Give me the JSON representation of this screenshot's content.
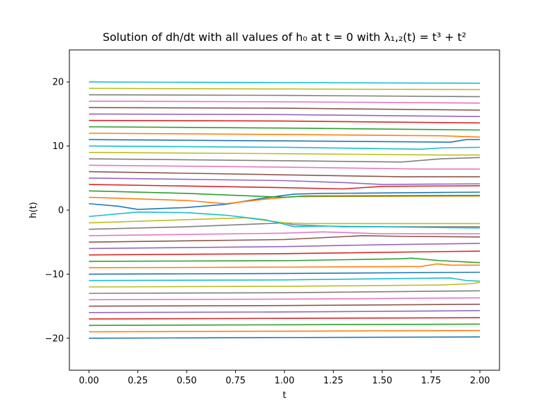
{
  "chart_data": {
    "type": "line",
    "title": "Solution of dh/dt with all values of h₀ at t = 0 with λ₁,₂(t) = t³ + t²",
    "xlabel": "t",
    "ylabel": "h(t)",
    "xlim": [
      -0.1,
      2.1
    ],
    "ylim": [
      -25,
      25
    ],
    "x_ticks": [
      0.0,
      0.25,
      0.5,
      0.75,
      1.0,
      1.25,
      1.5,
      1.75,
      2.0
    ],
    "x_tick_labels": [
      "0.00",
      "0.25",
      "0.50",
      "0.75",
      "1.00",
      "1.25",
      "1.50",
      "1.75",
      "2.00"
    ],
    "y_ticks": [
      -20,
      -10,
      0,
      10,
      20
    ],
    "y_tick_labels": [
      "−20",
      "−10",
      "0",
      "10",
      "20"
    ],
    "grid": false,
    "legend": "none",
    "series_colors": [
      "#1f77b4",
      "#ff7f0e",
      "#2ca02c",
      "#d62728",
      "#9467bd",
      "#8c564b",
      "#e377c2",
      "#7f7f7f",
      "#bcbd22",
      "#17becf"
    ],
    "series": [
      {
        "h0": -20,
        "points": [
          [
            0,
            -20.0
          ],
          [
            1,
            -19.9
          ],
          [
            2,
            -19.8
          ]
        ]
      },
      {
        "h0": -19,
        "points": [
          [
            0,
            -19.0
          ],
          [
            1,
            -18.9
          ],
          [
            2,
            -18.8
          ]
        ]
      },
      {
        "h0": -18,
        "points": [
          [
            0,
            -18.0
          ],
          [
            1,
            -17.9
          ],
          [
            2,
            -17.8
          ]
        ]
      },
      {
        "h0": -17,
        "points": [
          [
            0,
            -17.0
          ],
          [
            1,
            -16.9
          ],
          [
            2,
            -16.8
          ]
        ]
      },
      {
        "h0": -16,
        "points": [
          [
            0,
            -16.0
          ],
          [
            1,
            -15.9
          ],
          [
            2,
            -15.7
          ]
        ]
      },
      {
        "h0": -15,
        "points": [
          [
            0,
            -15.0
          ],
          [
            1,
            -14.9
          ],
          [
            2,
            -14.7
          ]
        ]
      },
      {
        "h0": -14,
        "points": [
          [
            0,
            -14.0
          ],
          [
            1,
            -13.9
          ],
          [
            2,
            -13.7
          ]
        ]
      },
      {
        "h0": -13,
        "points": [
          [
            0,
            -13.0
          ],
          [
            1,
            -12.9
          ],
          [
            2,
            -12.6
          ]
        ]
      },
      {
        "h0": -12,
        "points": [
          [
            0,
            -12.0
          ],
          [
            1,
            -11.9
          ],
          [
            1.8,
            -11.7
          ],
          [
            1.95,
            -11.5
          ],
          [
            2,
            -11.3
          ]
        ]
      },
      {
        "h0": -11,
        "points": [
          [
            0,
            -11.0
          ],
          [
            1,
            -10.9
          ],
          [
            1.85,
            -10.6
          ],
          [
            1.93,
            -11.0
          ],
          [
            2,
            -11.1
          ]
        ]
      },
      {
        "h0": -10,
        "points": [
          [
            0,
            -10.0
          ],
          [
            1,
            -9.9
          ],
          [
            2,
            -9.7
          ]
        ]
      },
      {
        "h0": -9,
        "points": [
          [
            0,
            -9.0
          ],
          [
            1,
            -8.9
          ],
          [
            1.7,
            -8.8
          ],
          [
            1.78,
            -8.4
          ],
          [
            1.85,
            -8.6
          ],
          [
            2,
            -8.6
          ]
        ]
      },
      {
        "h0": -8,
        "points": [
          [
            0,
            -8.0
          ],
          [
            1,
            -7.9
          ],
          [
            1.6,
            -7.6
          ],
          [
            1.65,
            -7.5
          ],
          [
            1.8,
            -7.9
          ],
          [
            2,
            -8.2
          ]
        ]
      },
      {
        "h0": -7,
        "points": [
          [
            0,
            -7.0
          ],
          [
            1,
            -6.8
          ],
          [
            2,
            -6.4
          ]
        ]
      },
      {
        "h0": -6,
        "points": [
          [
            0,
            -6.0
          ],
          [
            1,
            -5.7
          ],
          [
            1.5,
            -5.4
          ],
          [
            2,
            -5.2
          ]
        ]
      },
      {
        "h0": -5,
        "points": [
          [
            0,
            -5.0
          ],
          [
            1,
            -4.6
          ],
          [
            1.4,
            -4.0
          ],
          [
            1.6,
            -4.1
          ],
          [
            2,
            -4.2
          ]
        ]
      },
      {
        "h0": -4,
        "points": [
          [
            0,
            -4.0
          ],
          [
            1,
            -3.6
          ],
          [
            1.2,
            -3.4
          ],
          [
            1.5,
            -3.7
          ],
          [
            2,
            -3.7
          ]
        ]
      },
      {
        "h0": -3,
        "points": [
          [
            0,
            -3.0
          ],
          [
            0.5,
            -2.6
          ],
          [
            1,
            -2.0
          ],
          [
            1.05,
            -2.3
          ],
          [
            1.3,
            -2.6
          ],
          [
            2,
            -2.6
          ]
        ]
      },
      {
        "h0": -2,
        "points": [
          [
            0,
            -2.0
          ],
          [
            0.5,
            -1.5
          ],
          [
            0.8,
            -1.2
          ],
          [
            1.0,
            -2.0
          ],
          [
            1.1,
            -2.1
          ],
          [
            2,
            -2.1
          ]
        ]
      },
      {
        "h0": -1,
        "points": [
          [
            0,
            -1.0
          ],
          [
            0.25,
            -0.3
          ],
          [
            0.5,
            -0.4
          ],
          [
            0.7,
            -0.8
          ],
          [
            0.9,
            -1.5
          ],
          [
            1.0,
            -2.2
          ],
          [
            1.05,
            -2.6
          ],
          [
            1.2,
            -2.5
          ],
          [
            2,
            -2.8
          ]
        ]
      },
      {
        "h0": 1,
        "points": [
          [
            0,
            1.0
          ],
          [
            0.15,
            0.6
          ],
          [
            0.25,
            0.1
          ],
          [
            0.5,
            0.4
          ],
          [
            0.7,
            0.9
          ],
          [
            0.9,
            1.9
          ],
          [
            1.05,
            2.5
          ],
          [
            1.2,
            2.6
          ],
          [
            2,
            2.8
          ]
        ]
      },
      {
        "h0": 2,
        "points": [
          [
            0,
            2.0
          ],
          [
            0.5,
            1.5
          ],
          [
            0.7,
            1.0
          ],
          [
            0.9,
            1.7
          ],
          [
            1.05,
            2.1
          ],
          [
            2,
            2.2
          ]
        ]
      },
      {
        "h0": 3,
        "points": [
          [
            0,
            3.0
          ],
          [
            0.5,
            2.6
          ],
          [
            1,
            2.0
          ],
          [
            1.1,
            2.2
          ],
          [
            2,
            2.3
          ]
        ]
      },
      {
        "h0": 4,
        "points": [
          [
            0,
            4.0
          ],
          [
            1,
            3.5
          ],
          [
            1.3,
            3.3
          ],
          [
            1.5,
            3.7
          ],
          [
            2,
            3.8
          ]
        ]
      },
      {
        "h0": 5,
        "points": [
          [
            0,
            5.0
          ],
          [
            1,
            4.6
          ],
          [
            1.3,
            4.3
          ],
          [
            1.5,
            4.0
          ],
          [
            2,
            4.1
          ]
        ]
      },
      {
        "h0": 6,
        "points": [
          [
            0,
            6.0
          ],
          [
            1,
            5.5
          ],
          [
            1.6,
            5.2
          ],
          [
            2,
            5.2
          ]
        ]
      },
      {
        "h0": 7,
        "points": [
          [
            0,
            7.0
          ],
          [
            1,
            6.7
          ],
          [
            1.7,
            6.4
          ],
          [
            2,
            6.4
          ]
        ]
      },
      {
        "h0": 8,
        "points": [
          [
            0,
            8.0
          ],
          [
            1,
            7.7
          ],
          [
            1.6,
            7.5
          ],
          [
            1.8,
            8.0
          ],
          [
            2,
            8.2
          ]
        ]
      },
      {
        "h0": 9,
        "points": [
          [
            0,
            9.0
          ],
          [
            1,
            8.8
          ],
          [
            1.8,
            8.6
          ],
          [
            2,
            8.6
          ]
        ]
      },
      {
        "h0": 10,
        "points": [
          [
            0,
            10.0
          ],
          [
            1,
            9.8
          ],
          [
            1.7,
            9.5
          ],
          [
            1.8,
            9.7
          ],
          [
            2,
            9.8
          ]
        ]
      },
      {
        "h0": 11,
        "points": [
          [
            0,
            11.0
          ],
          [
            1,
            10.8
          ],
          [
            1.85,
            10.6
          ],
          [
            1.93,
            11.0
          ],
          [
            2,
            11.0
          ]
        ]
      },
      {
        "h0": 12,
        "points": [
          [
            0,
            12.0
          ],
          [
            1,
            11.8
          ],
          [
            1.8,
            11.6
          ],
          [
            2,
            11.4
          ]
        ]
      },
      {
        "h0": 13,
        "points": [
          [
            0,
            13.0
          ],
          [
            1,
            12.8
          ],
          [
            2,
            12.5
          ]
        ]
      },
      {
        "h0": 14,
        "points": [
          [
            0,
            14.0
          ],
          [
            1,
            13.9
          ],
          [
            2,
            13.6
          ]
        ]
      },
      {
        "h0": 15,
        "points": [
          [
            0,
            15.0
          ],
          [
            1,
            14.9
          ],
          [
            2,
            14.6
          ]
        ]
      },
      {
        "h0": 16,
        "points": [
          [
            0,
            16.0
          ],
          [
            1,
            15.9
          ],
          [
            2,
            15.6
          ]
        ]
      },
      {
        "h0": 17,
        "points": [
          [
            0,
            17.0
          ],
          [
            1,
            16.9
          ],
          [
            2,
            16.7
          ]
        ]
      },
      {
        "h0": 18,
        "points": [
          [
            0,
            18.0
          ],
          [
            1,
            17.9
          ],
          [
            2,
            17.7
          ]
        ]
      },
      {
        "h0": 19,
        "points": [
          [
            0,
            19.0
          ],
          [
            1,
            18.9
          ],
          [
            2,
            18.8
          ]
        ]
      },
      {
        "h0": 20,
        "points": [
          [
            0,
            20.0
          ],
          [
            1,
            19.9
          ],
          [
            2,
            19.8
          ]
        ]
      }
    ]
  }
}
